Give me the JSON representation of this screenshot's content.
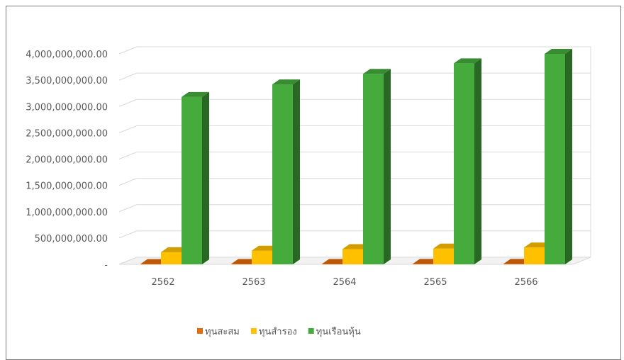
{
  "chart_data": {
    "type": "bar",
    "variant": "3d-clustered-column",
    "title": "",
    "xlabel": "",
    "ylabel": "",
    "categories": [
      "2562",
      "2563",
      "2564",
      "2565",
      "2566"
    ],
    "y_tick_labels": [
      "-",
      "500,000,000.00",
      "1,000,000,000.00",
      "1,500,000,000.00",
      "2,000,000,000.00",
      "2,500,000,000.00",
      "3,000,000,000.00",
      "3,500,000,000.00",
      "4,000,000,000.00"
    ],
    "ylim": [
      0,
      4000000000
    ],
    "grid": true,
    "legend_position": "bottom",
    "series": [
      {
        "name": "ทุนสะสม",
        "color": "#E46C0A",
        "values": [
          5000000,
          6000000,
          7000000,
          8000000,
          9000000
        ]
      },
      {
        "name": "ทุนสำรอง",
        "color": "#FFC000",
        "values": [
          230000000,
          260000000,
          290000000,
          300000000,
          320000000
        ]
      },
      {
        "name": "ทุนเรือนหุ้น",
        "color": "#44AB3C",
        "values": [
          3180000000,
          3420000000,
          3620000000,
          3820000000,
          4000000000
        ]
      }
    ]
  }
}
